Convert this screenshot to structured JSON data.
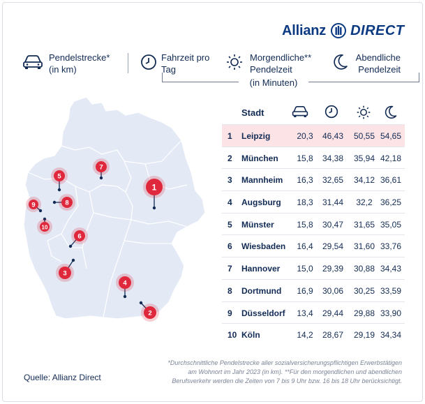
{
  "brand": {
    "word": "Allianz",
    "direct": "DIRECT",
    "colors": {
      "brand_blue": "#0b3a82",
      "accent_red": "#e0283c",
      "highlight_row": "#fbe3e6",
      "map_fill": "#e3e9f5"
    }
  },
  "legend": {
    "pendel": {
      "icon": "car-icon",
      "line1": "Pendelstrecke*",
      "line2": "(in km)"
    },
    "fahrzeit": {
      "icon": "clock-icon",
      "line1": "Fahrzeit pro",
      "line2": "Tag"
    },
    "morgen": {
      "icon": "sun-icon",
      "line1": "Morgendliche**",
      "line2": "Pendelzeit"
    },
    "abend": {
      "icon": "moon-icon",
      "line1": "Abendliche",
      "line2": "Pendelzeit"
    },
    "minutes_label": "(in Minuten)"
  },
  "table": {
    "header_city": "Stadt",
    "rows": [
      {
        "rank": "1",
        "city": "Leipzig",
        "km": "20,3",
        "tag": "46,43",
        "morgen": "50,55",
        "abend": "54,65"
      },
      {
        "rank": "2",
        "city": "München",
        "km": "15,8",
        "tag": "34,38",
        "morgen": "35,94",
        "abend": "42,18"
      },
      {
        "rank": "3",
        "city": "Mannheim",
        "km": "16,3",
        "tag": "32,65",
        "morgen": "34,12",
        "abend": "36,61"
      },
      {
        "rank": "4",
        "city": "Augsburg",
        "km": "18,3",
        "tag": "31,44",
        "morgen": "32,2",
        "abend": "36,25"
      },
      {
        "rank": "5",
        "city": "Münster",
        "km": "15,8",
        "tag": "30,47",
        "morgen": "31,65",
        "abend": "35,05"
      },
      {
        "rank": "6",
        "city": "Wiesbaden",
        "km": "16,4",
        "tag": "29,54",
        "morgen": "31,60",
        "abend": "33,76"
      },
      {
        "rank": "7",
        "city": "Hannover",
        "km": "15,0",
        "tag": "29,39",
        "morgen": "30,88",
        "abend": "34,43"
      },
      {
        "rank": "8",
        "city": "Dortmund",
        "km": "16,9",
        "tag": "30,06",
        "morgen": "30,25",
        "abend": "33,59"
      },
      {
        "rank": "9",
        "city": "Düsseldorf",
        "km": "13,4",
        "tag": "29,44",
        "morgen": "29,88",
        "abend": "33,90"
      },
      {
        "rank": "10",
        "city": "Köln",
        "km": "14,2",
        "tag": "28,67",
        "morgen": "29,19",
        "abend": "34,34"
      }
    ]
  },
  "map": {
    "markers": [
      {
        "label": "1",
        "city": "Leipzig"
      },
      {
        "label": "2",
        "city": "München"
      },
      {
        "label": "3",
        "city": "Mannheim"
      },
      {
        "label": "4",
        "city": "Augsburg"
      },
      {
        "label": "5",
        "city": "Münster"
      },
      {
        "label": "6",
        "city": "Wiesbaden"
      },
      {
        "label": "7",
        "city": "Hannover"
      },
      {
        "label": "8",
        "city": "Dortmund"
      },
      {
        "label": "9",
        "city": "Düsseldorf"
      },
      {
        "label": "10",
        "city": "Köln"
      }
    ]
  },
  "source": "Quelle: Allianz Direct",
  "footnote": {
    "line1": "*Durchschnittliche Pendelstrecke aller sozialversicherungspflichtigen Erwerbstätigen",
    "line2": "am Wohnort im Jahr 2023 (in km). **Für den morgendlichen und abendlichen",
    "line3": "Berufsverkehr werden die Zeiten von 7 bis 9 Uhr bzw. 16 bis 18 Uhr berücksichtigt."
  }
}
